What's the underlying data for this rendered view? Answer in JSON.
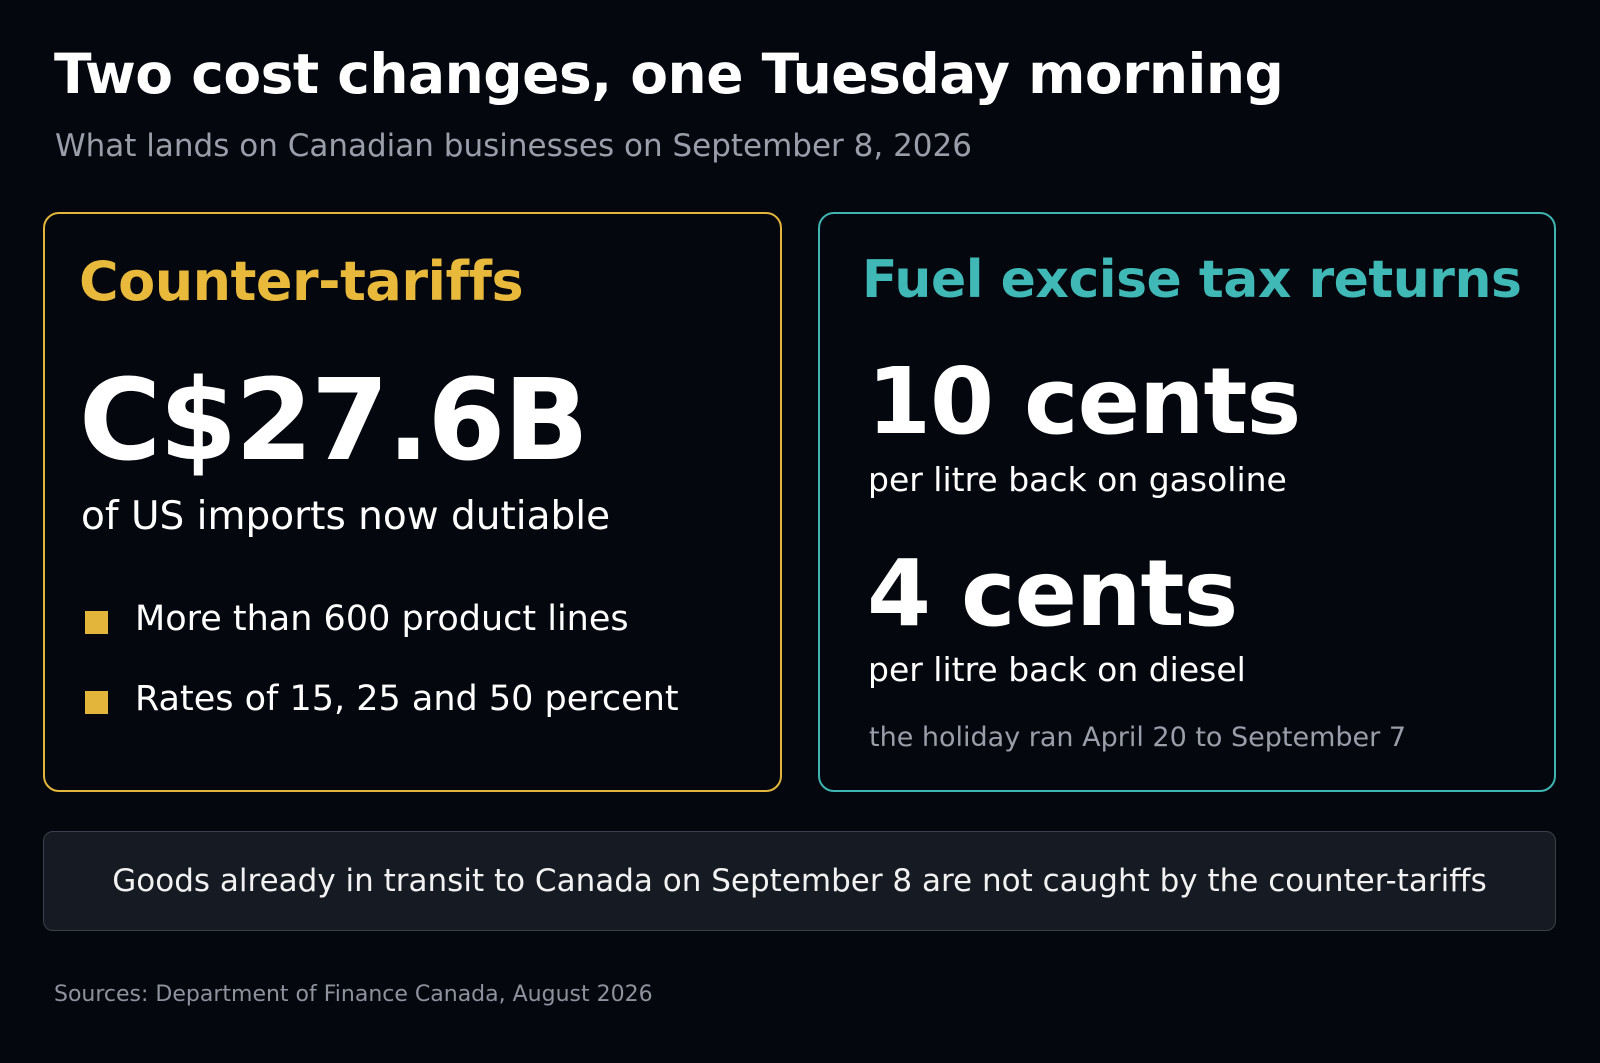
{
  "header": {
    "title": "Two cost changes, one Tuesday morning",
    "subtitle": "What lands on Canadian businesses on September 8, 2026"
  },
  "counter_tariffs": {
    "heading": "Counter-tariffs",
    "amount": "C$27.6B",
    "amount_caption": "of US imports now dutiable",
    "bullets": [
      "More than 600 product lines",
      "Rates of 15, 25 and 50 percent"
    ]
  },
  "fuel_excise": {
    "heading": "Fuel excise tax returns",
    "gasoline_amount": "10 cents",
    "gasoline_caption": "per litre back on gasoline",
    "diesel_amount": "4 cents",
    "diesel_caption": "per litre back on diesel",
    "holiday_note": "the holiday ran April 20 to September 7"
  },
  "note": "Goods already in transit to Canada on September 8 are not caught by the counter-tariffs",
  "sources": "Sources: Department of Finance Canada, August 2026",
  "colors": {
    "background": "#05070f",
    "tariff_accent": "#e3b53a",
    "fuel_accent": "#3fb5b2",
    "muted_text": "#9a9ea8"
  }
}
